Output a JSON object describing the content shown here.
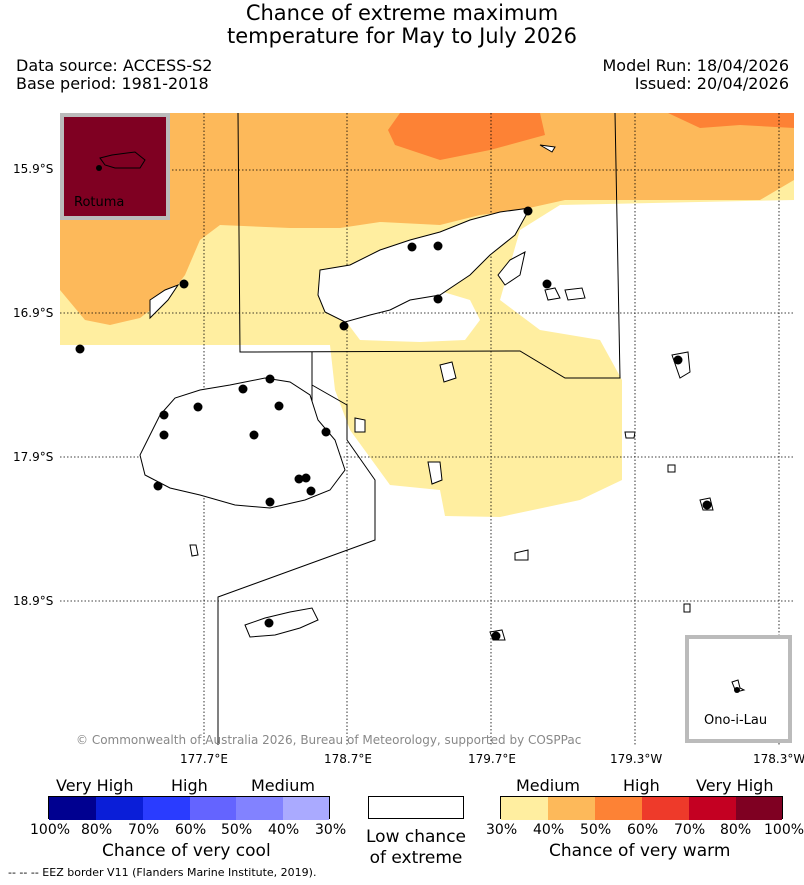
{
  "header": {
    "title_line1": "Chance of extreme maximum",
    "title_line2": "temperature for May to July 2026",
    "data_source": "Data source: ACCESS-S2",
    "base_period": "Base period: 1981-2018",
    "model_run": "Model Run: 18/04/2026",
    "issued": "Issued: 20/04/2026"
  },
  "map": {
    "lat_labels": [
      "15.9°S",
      "16.9°S",
      "17.9°S",
      "18.9°S"
    ],
    "lon_labels": [
      "177.7°E",
      "178.7°E",
      "179.7°E",
      "179.3°W",
      "178.3°W"
    ],
    "inset_rotuma_label": "Rotuma",
    "inset_onoilau_label": "Ono-i-Lau",
    "copyright": "© Commonwealth of Australia 2026, Bureau of Meteorology, supported by COSPPac",
    "colors": {
      "medium_warm": "#ffeea0",
      "high_warm_40": "#fdb95a",
      "high_warm_50": "#fd8235",
      "very_high_warm_80": "#7f0022"
    }
  },
  "legend_cool": {
    "categories": [
      "Very High",
      "High",
      "Medium"
    ],
    "ticks": [
      "100%",
      "80%",
      "70%",
      "60%",
      "50%",
      "40%",
      "30%"
    ],
    "colors": [
      "#000090",
      "#0a1ed8",
      "#2a3cff",
      "#6464ff",
      "#8282ff",
      "#aaaaff"
    ],
    "caption": "Chance of very cool"
  },
  "legend_low": {
    "caption_line1": "Low chance",
    "caption_line2": "of extreme",
    "color": "#ffffff"
  },
  "legend_warm": {
    "categories": [
      "Medium",
      "High",
      "Very High"
    ],
    "ticks": [
      "30%",
      "40%",
      "50%",
      "60%",
      "70%",
      "80%",
      "100%"
    ],
    "colors": [
      "#ffeea0",
      "#fdb95a",
      "#fd8235",
      "#ee3a2a",
      "#c40022",
      "#7f0022"
    ],
    "caption": "Chance of very warm"
  },
  "footnote": "-- -- -- EEZ border V11 (Flanders Marine Institute, 2019)."
}
